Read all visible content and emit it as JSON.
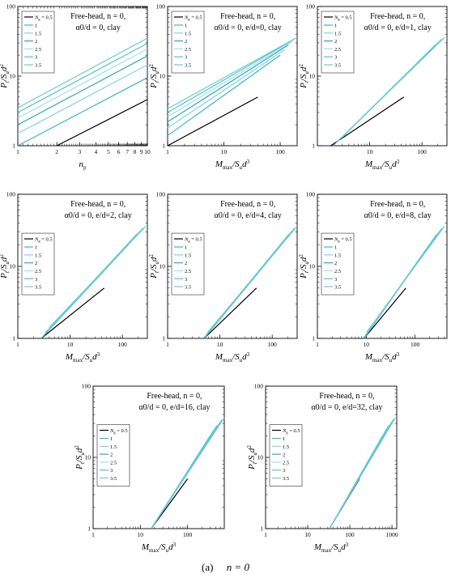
{
  "caption": {
    "label": "(a)",
    "expr": "n = 0"
  },
  "palette": {
    "base": "#000000",
    "series": [
      "#39b6c7",
      "#7ed4de",
      "#2aa9bc",
      "#9fdfe6",
      "#4ec1d0",
      "#6ccbd6"
    ]
  },
  "chart_data": [
    {
      "type": "line",
      "id": "a1",
      "scale": "log-log",
      "xlim": [
        1,
        10
      ],
      "ylim": [
        1,
        100
      ],
      "xticks": [
        "1",
        "2",
        "3",
        "4",
        "5",
        "6",
        "7",
        "8",
        "9",
        "10"
      ],
      "yticks": [
        "1",
        "10",
        "100"
      ],
      "minor_x": true,
      "xlabel": {
        "main": "n",
        "sub": "p"
      },
      "ylabel": "Pt/Sud2",
      "title_lines": [
        "Free-head,  n = 0,",
        "α0/d = 0,  clay"
      ],
      "legend": {
        "title_prefix": "N",
        "title_sub": "g",
        "title_value": "= 0.5",
        "entries": [
          "1",
          "1.5",
          "2",
          "2.5",
          "3",
          "3.5"
        ]
      },
      "series": [
        {
          "name": "0.5",
          "x": [
            2,
            10
          ],
          "y": [
            1,
            4.6
          ]
        },
        {
          "name": "1",
          "x": [
            1,
            10
          ],
          "y": [
            1,
            9.5
          ]
        },
        {
          "name": "1.5",
          "x": [
            1,
            10
          ],
          "y": [
            1.5,
            14.5
          ]
        },
        {
          "name": "2",
          "x": [
            1,
            10
          ],
          "y": [
            2,
            19.5
          ]
        },
        {
          "name": "2.5",
          "x": [
            1,
            10
          ],
          "y": [
            2.5,
            24.5
          ]
        },
        {
          "name": "3",
          "x": [
            1,
            10
          ],
          "y": [
            3,
            29.5
          ]
        },
        {
          "name": "3.5",
          "x": [
            1,
            10
          ],
          "y": [
            3.5,
            35
          ]
        }
      ]
    },
    {
      "type": "line",
      "id": "a2",
      "scale": "log-log",
      "xlim": [
        1,
        200
      ],
      "ylim": [
        1,
        100
      ],
      "xticks": [
        "1",
        "10",
        "100"
      ],
      "yticks": [
        "1",
        "10",
        "100"
      ],
      "xlabel": {
        "main": "M",
        "sub": "max",
        "tail": "/Sud3"
      },
      "ylabel": "Pt/Sud2",
      "title_lines": [
        "Free-head,  n = 0,",
        "α0/d = 0,  e/d=0,  clay"
      ],
      "legend": {
        "title_prefix": "N",
        "title_sub": "g",
        "title_value": "= 0.5",
        "entries": [
          "1",
          "1.5",
          "2",
          "2.5",
          "3",
          "3.5"
        ]
      },
      "series": [
        {
          "name": "0.5",
          "x": [
            1,
            40
          ],
          "y": [
            1,
            5
          ]
        },
        {
          "name": "1",
          "x": [
            1,
            100
          ],
          "y": [
            1.4,
            20
          ]
        },
        {
          "name": "1.5",
          "x": [
            1,
            120
          ],
          "y": [
            1.8,
            24
          ]
        },
        {
          "name": "2",
          "x": [
            1,
            140
          ],
          "y": [
            2.2,
            28
          ]
        },
        {
          "name": "2.5",
          "x": [
            1,
            160
          ],
          "y": [
            2.6,
            31
          ]
        },
        {
          "name": "3",
          "x": [
            1,
            180
          ],
          "y": [
            3,
            34
          ]
        },
        {
          "name": "3.5",
          "x": [
            1,
            200
          ],
          "y": [
            3.4,
            36
          ]
        }
      ]
    },
    {
      "type": "line",
      "id": "a3",
      "scale": "log-log",
      "xlim": [
        1,
        300
      ],
      "ylim": [
        1,
        100
      ],
      "xticks": [
        "10",
        "100"
      ],
      "yticks": [
        "1",
        "10",
        "100"
      ],
      "xlabel": {
        "main": "M",
        "sub": "max",
        "tail": "/Sud3"
      },
      "ylabel": "Pt/Sud2",
      "title_lines": [
        "Free-head,  n = 0,",
        "α0/d = 0,  e/d=1,  clay"
      ],
      "legend": {
        "title_prefix": "N",
        "title_sub": "g",
        "title_value": "= 0.5",
        "entries": [
          "1",
          "1.5",
          "2",
          "2.5",
          "3",
          "3.5"
        ]
      },
      "series": [
        {
          "name": "0.5",
          "x": [
            1.8,
            45
          ],
          "y": [
            1,
            5
          ]
        },
        {
          "name": "1",
          "x": [
            2,
            120
          ],
          "y": [
            1,
            20
          ]
        },
        {
          "name": "1.5",
          "x": [
            2.3,
            150
          ],
          "y": [
            1.1,
            24
          ]
        },
        {
          "name": "2",
          "x": [
            2.6,
            180
          ],
          "y": [
            1.2,
            28
          ]
        },
        {
          "name": "2.5",
          "x": [
            2.9,
            210
          ],
          "y": [
            1.3,
            31
          ]
        },
        {
          "name": "3",
          "x": [
            3.2,
            240
          ],
          "y": [
            1.4,
            34
          ]
        },
        {
          "name": "3.5",
          "x": [
            3.5,
            270
          ],
          "y": [
            1.5,
            36
          ]
        }
      ]
    },
    {
      "type": "line",
      "id": "a4",
      "scale": "log-log",
      "xlim": [
        1,
        300
      ],
      "ylim": [
        1,
        100
      ],
      "xticks": [
        "1",
        "10",
        "100"
      ],
      "yticks": [
        "1",
        "10",
        "100"
      ],
      "xlabel": {
        "main": "M",
        "sub": "max",
        "tail": "/Sud3"
      },
      "ylabel": "Pt/Sud2",
      "title_lines": [
        "Free-head,  n = 0,",
        "α0/d = 0,  e/d=2,  clay"
      ],
      "legend": {
        "title_prefix": "N",
        "title_sub": "g",
        "title_value": "= 0.5",
        "entries": [
          "1",
          "1.5",
          "2",
          "2.5",
          "3",
          "3.5"
        ]
      },
      "series": [
        {
          "name": "0.5",
          "x": [
            2.8,
            45
          ],
          "y": [
            1,
            5
          ]
        },
        {
          "name": "1",
          "x": [
            2.8,
            130
          ],
          "y": [
            1,
            20
          ]
        },
        {
          "name": "1.5",
          "x": [
            3.1,
            160
          ],
          "y": [
            1.1,
            24
          ]
        },
        {
          "name": "2",
          "x": [
            3.4,
            190
          ],
          "y": [
            1.2,
            28
          ]
        },
        {
          "name": "2.5",
          "x": [
            3.7,
            220
          ],
          "y": [
            1.3,
            31
          ]
        },
        {
          "name": "3",
          "x": [
            4,
            250
          ],
          "y": [
            1.4,
            34
          ]
        },
        {
          "name": "3.5",
          "x": [
            4.3,
            280
          ],
          "y": [
            1.5,
            36
          ]
        }
      ]
    },
    {
      "type": "line",
      "id": "a5",
      "scale": "log-log",
      "xlim": [
        1,
        300
      ],
      "ylim": [
        1,
        100
      ],
      "xticks": [
        "1",
        "10",
        "100"
      ],
      "yticks": [
        "1",
        "10",
        "100"
      ],
      "xlabel": {
        "main": "M",
        "sub": "max",
        "tail": "/Sud3"
      },
      "ylabel": "Pt/Sud2",
      "title_lines": [
        "Free-head,  n = 0,",
        "α0/d = 0,  e/d=4,  clay"
      ],
      "legend": {
        "title_prefix": "N",
        "title_sub": "g",
        "title_value": "= 0.5",
        "entries": [
          "1",
          "1.5",
          "2",
          "2.5",
          "3",
          "3.5"
        ]
      },
      "series": [
        {
          "name": "0.5",
          "x": [
            5,
            50
          ],
          "y": [
            1,
            5
          ]
        },
        {
          "name": "1",
          "x": [
            5,
            150
          ],
          "y": [
            1,
            20
          ]
        },
        {
          "name": "1.5",
          "x": [
            5.2,
            180
          ],
          "y": [
            1.05,
            24
          ]
        },
        {
          "name": "2",
          "x": [
            5.4,
            210
          ],
          "y": [
            1.1,
            28
          ]
        },
        {
          "name": "2.5",
          "x": [
            5.6,
            240
          ],
          "y": [
            1.15,
            31
          ]
        },
        {
          "name": "3",
          "x": [
            5.8,
            270
          ],
          "y": [
            1.2,
            34
          ]
        },
        {
          "name": "3.5",
          "x": [
            6,
            300
          ],
          "y": [
            1.25,
            36
          ]
        }
      ]
    },
    {
      "type": "line",
      "id": "a6",
      "scale": "log-log",
      "xlim": [
        1,
        450
      ],
      "ylim": [
        1,
        100
      ],
      "xticks": [
        "1",
        "10",
        "100"
      ],
      "yticks": [
        "1",
        "10",
        "100"
      ],
      "xlabel": {
        "main": "M",
        "sub": "max",
        "tail": "/Sud3"
      },
      "ylabel": "Pt/Sud2",
      "title_lines": [
        "Free-head,  n = 0,",
        "α0/d = 0,  e/d=8,  clay"
      ],
      "legend": {
        "title_prefix": "N",
        "title_sub": "g",
        "title_value": "= 0.5",
        "entries": [
          "1",
          "1.5",
          "2",
          "2.5",
          "3",
          "3.5"
        ]
      },
      "series": [
        {
          "name": "0.5",
          "x": [
            9,
            65
          ],
          "y": [
            1,
            5
          ]
        },
        {
          "name": "1",
          "x": [
            9,
            200
          ],
          "y": [
            1,
            20
          ]
        },
        {
          "name": "1.5",
          "x": [
            9.3,
            240
          ],
          "y": [
            1.05,
            24
          ]
        },
        {
          "name": "2",
          "x": [
            9.6,
            280
          ],
          "y": [
            1.1,
            28
          ]
        },
        {
          "name": "2.5",
          "x": [
            9.9,
            320
          ],
          "y": [
            1.15,
            31
          ]
        },
        {
          "name": "3",
          "x": [
            10.2,
            360
          ],
          "y": [
            1.2,
            34
          ]
        },
        {
          "name": "3.5",
          "x": [
            10.5,
            400
          ],
          "y": [
            1.25,
            36
          ]
        }
      ]
    },
    {
      "type": "line",
      "id": "a7",
      "scale": "log-log",
      "xlim": [
        1,
        600
      ],
      "ylim": [
        1,
        100
      ],
      "xticks": [
        "1",
        "10",
        "100"
      ],
      "yticks": [
        "1",
        "10",
        "100"
      ],
      "xlabel": {
        "main": "M",
        "sub": "max",
        "tail": "/Sud3"
      },
      "ylabel": "Pt/Sud2",
      "title_lines": [
        "Free-head,  n = 0,",
        "α0/d = 0,  e/d=16,  clay"
      ],
      "legend": {
        "title_prefix": "N",
        "title_sub": "g",
        "title_value": "= 0.5",
        "entries": [
          "1",
          "1.5",
          "2",
          "2.5",
          "3",
          "3.5"
        ]
      },
      "series": [
        {
          "name": "0.5",
          "x": [
            17,
            100
          ],
          "y": [
            1,
            5
          ]
        },
        {
          "name": "1",
          "x": [
            17,
            300
          ],
          "y": [
            1,
            20
          ]
        },
        {
          "name": "1.5",
          "x": [
            17.5,
            360
          ],
          "y": [
            1.03,
            24
          ]
        },
        {
          "name": "2",
          "x": [
            18,
            420
          ],
          "y": [
            1.06,
            28
          ]
        },
        {
          "name": "2.5",
          "x": [
            18.5,
            480
          ],
          "y": [
            1.09,
            31
          ]
        },
        {
          "name": "3",
          "x": [
            19,
            540
          ],
          "y": [
            1.12,
            34
          ]
        },
        {
          "name": "3.5",
          "x": [
            19.5,
            600
          ],
          "y": [
            1.15,
            36
          ]
        }
      ]
    },
    {
      "type": "line",
      "id": "a8",
      "scale": "log-log",
      "xlim": [
        1,
        1300
      ],
      "ylim": [
        1,
        100
      ],
      "xticks": [
        "1",
        "10",
        "100",
        "1000"
      ],
      "yticks": [
        "1",
        "10",
        "100"
      ],
      "xlabel": {
        "main": "M",
        "sub": "max",
        "tail": "/Sud3"
      },
      "ylabel": "Pt/Sud2",
      "title_lines": [
        "Free-head,  n = 0,",
        "α0/d = 0,  e/d=32,  clay"
      ],
      "legend": {
        "title_prefix": "N",
        "title_sub": "g",
        "title_value": "= 0.5",
        "entries": [
          "1",
          "1.5",
          "2",
          "2.5",
          "3",
          "3.5"
        ]
      },
      "series": [
        {
          "name": "0.5",
          "x": [
            33,
            170
          ],
          "y": [
            1,
            5
          ]
        },
        {
          "name": "1",
          "x": [
            33,
            600
          ],
          "y": [
            1,
            20
          ]
        },
        {
          "name": "1.5",
          "x": [
            34,
            720
          ],
          "y": [
            1.03,
            24
          ]
        },
        {
          "name": "2",
          "x": [
            35,
            840
          ],
          "y": [
            1.06,
            28
          ]
        },
        {
          "name": "2.5",
          "x": [
            36,
            960
          ],
          "y": [
            1.09,
            31
          ]
        },
        {
          "name": "3",
          "x": [
            37,
            1080
          ],
          "y": [
            1.12,
            34
          ]
        },
        {
          "name": "3.5",
          "x": [
            38,
            1200
          ],
          "y": [
            1.15,
            36
          ]
        }
      ]
    }
  ]
}
